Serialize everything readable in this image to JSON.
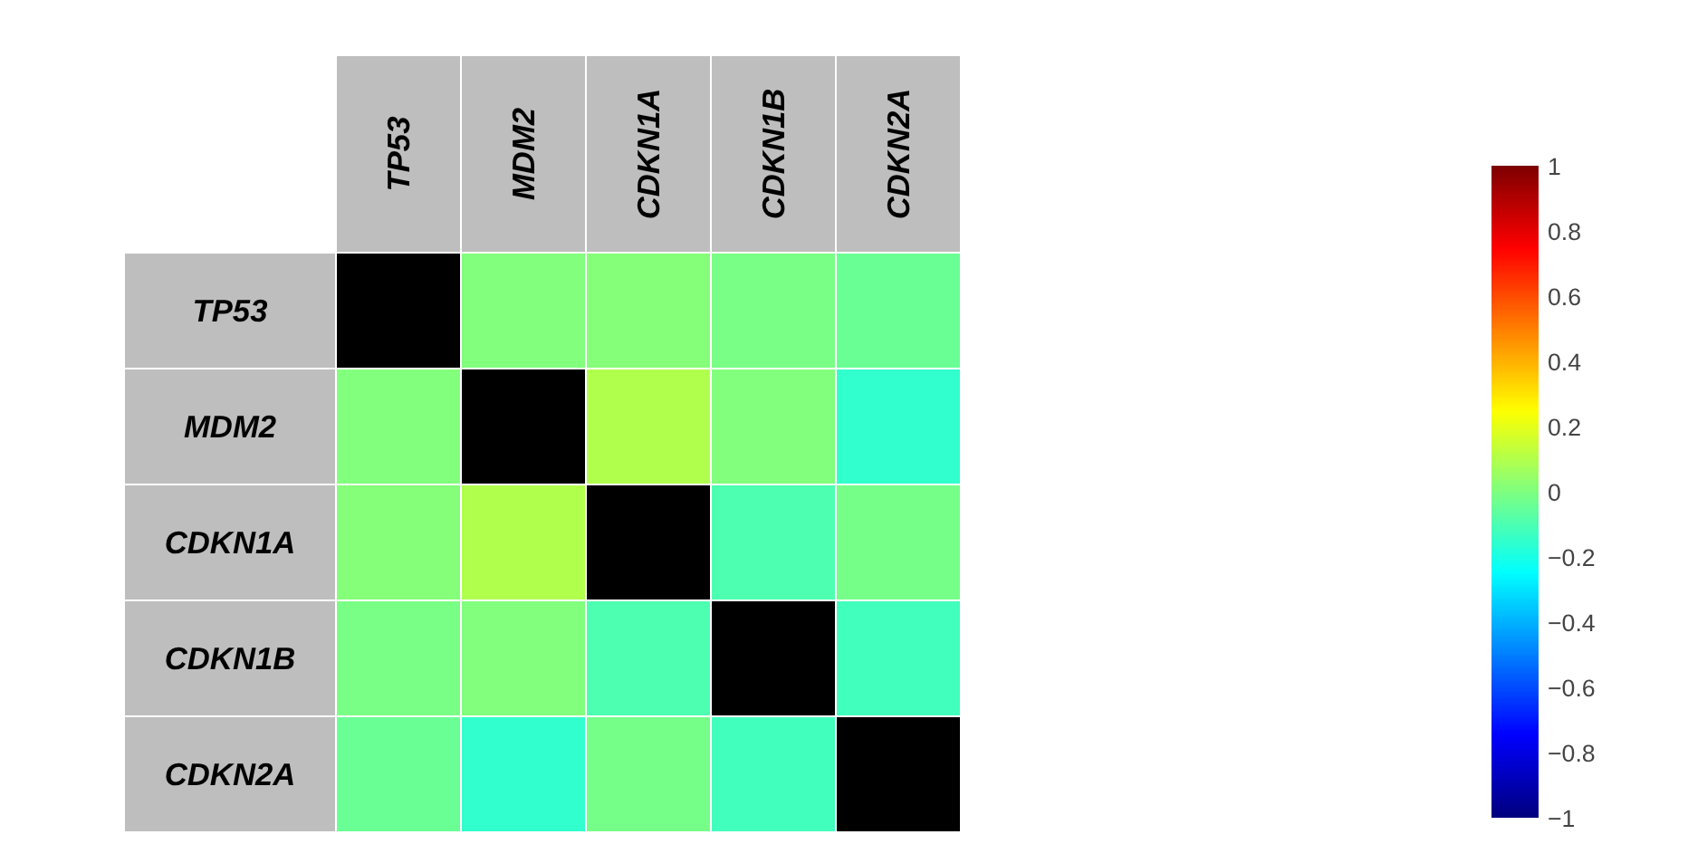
{
  "chart_data": {
    "type": "heatmap",
    "categories": [
      "TP53",
      "MDM2",
      "CDKN1A",
      "CDKN1B",
      "CDKN2A"
    ],
    "y_categories": [
      "TP53",
      "MDM2",
      "CDKN1A",
      "CDKN1B",
      "CDKN2A"
    ],
    "cells": [
      [
        null,
        0.0,
        0.01,
        -0.01,
        -0.04
      ],
      [
        0.0,
        null,
        0.1,
        0.0,
        -0.15
      ],
      [
        0.01,
        0.1,
        null,
        -0.1,
        -0.02
      ],
      [
        -0.01,
        0.0,
        -0.1,
        null,
        -0.12
      ],
      [
        -0.04,
        -0.15,
        -0.02,
        -0.12,
        null
      ]
    ],
    "clim": [
      -1,
      1
    ],
    "cticks": [
      -1,
      -0.8,
      -0.6,
      -0.4,
      -0.2,
      0,
      0.2,
      0.4,
      0.6,
      0.8,
      1
    ]
  }
}
